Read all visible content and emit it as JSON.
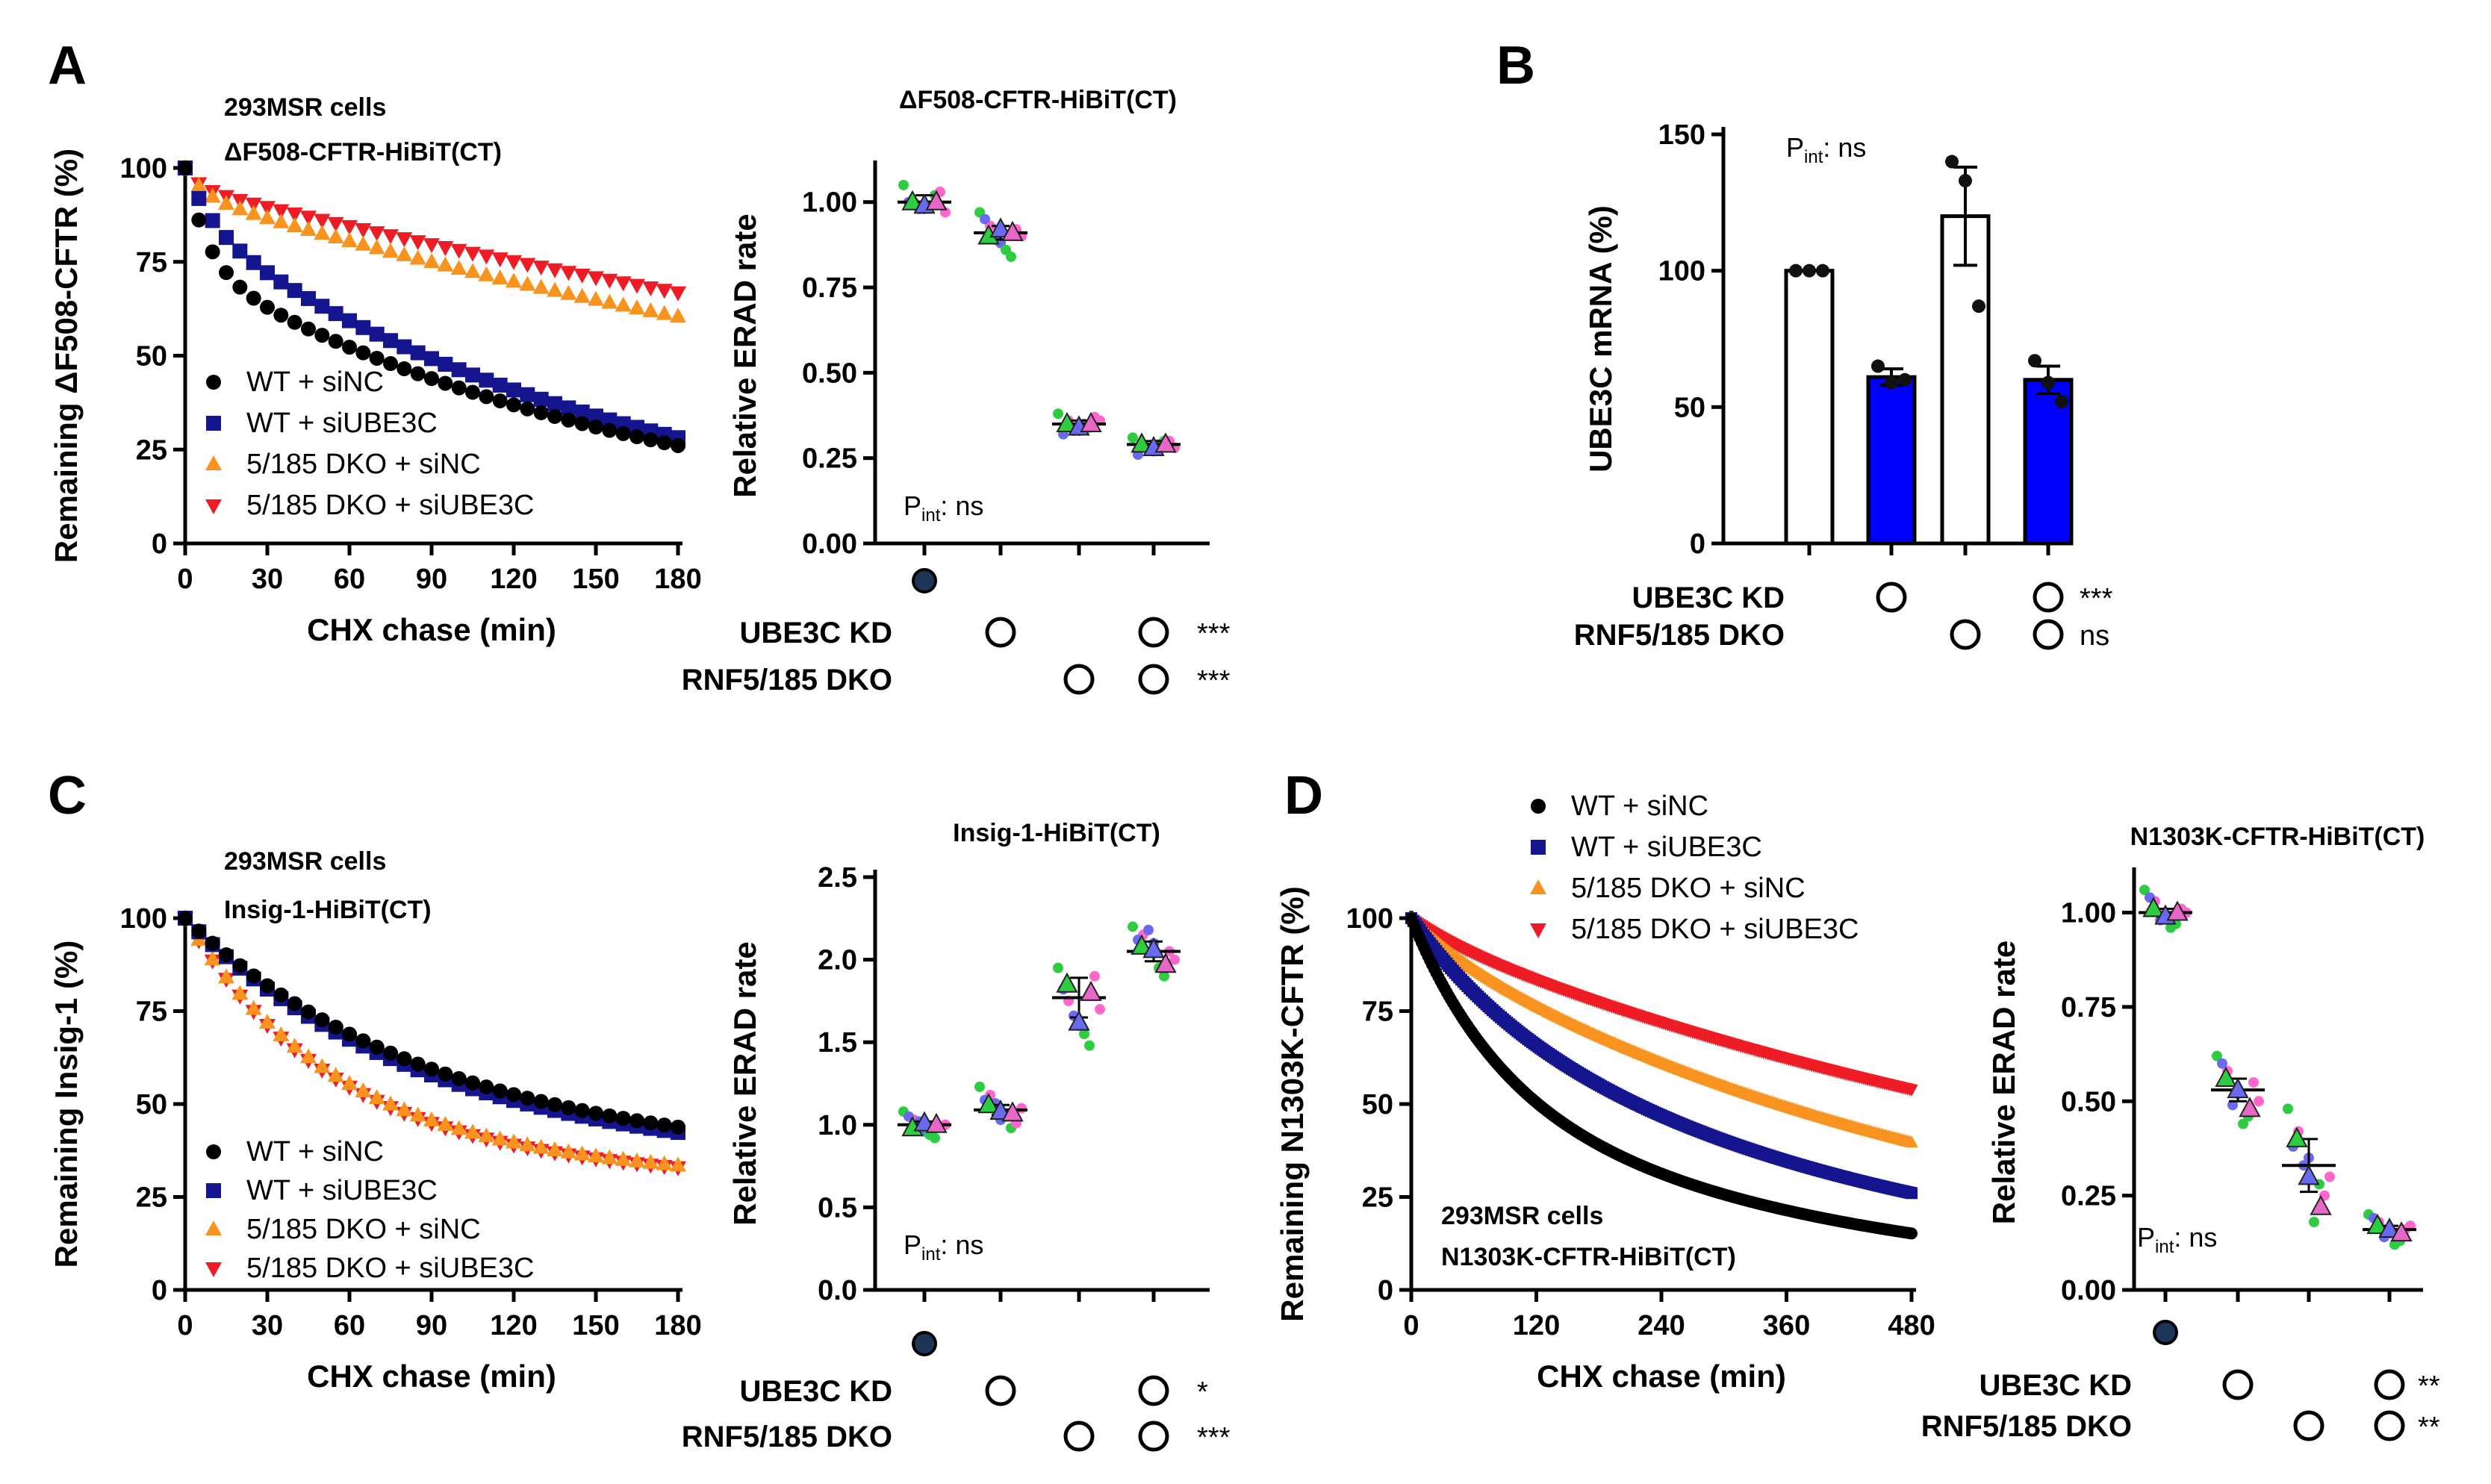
{
  "figure": {
    "panel_labels": [
      "A",
      "B",
      "C",
      "D"
    ],
    "pint_label_p": "P",
    "pint_label_sub": "int",
    "pint_value": ": ns"
  },
  "chart_data": [
    {
      "id": "A1",
      "type": "scatter",
      "title_lines": [
        "293MSR cells",
        "ΔF508-CFTR-HiBiT(CT)"
      ],
      "xlabel": "CHX chase (min)",
      "ylabel": "Remaining ΔF508-CFTR (%)",
      "xlim": [
        0,
        180
      ],
      "ylim": [
        0,
        100
      ],
      "xticks": [
        0,
        30,
        60,
        90,
        120,
        150,
        180
      ],
      "yticks": [
        0,
        25,
        50,
        75,
        100
      ],
      "x_step": 5,
      "legend": [
        "WT + siNC",
        "WT + siUBE3C",
        "5/185 DKO + siNC",
        "5/185 DKO + siUBE3C"
      ],
      "series": [
        {
          "name": "WT + siNC",
          "color": "#000000",
          "marker": "circle",
          "model": {
            "a": 0.26,
            "k1": 0.12,
            "b": 0.74,
            "k2": 0.0058
          }
        },
        {
          "name": "WT + siUBE3C",
          "color": "#15158f",
          "marker": "square",
          "model": {
            "a": 0.14,
            "k1": 0.1,
            "b": 0.86,
            "k2": 0.0062
          }
        },
        {
          "name": "5/185 DKO + siNC",
          "color": "#f7931e",
          "marker": "triangle-up",
          "model": {
            "a": 0.07,
            "k1": 0.15,
            "b": 0.93,
            "k2": 0.0024
          }
        },
        {
          "name": "5/185 DKO + siUBE3C",
          "color": "#ee1c24",
          "marker": "triangle-down",
          "model": {
            "a": 0.05,
            "k1": 0.2,
            "b": 0.95,
            "k2": 0.00195
          }
        }
      ]
    },
    {
      "id": "A2",
      "type": "scatter",
      "title": "ΔF508-CFTR-HiBiT(CT)",
      "ylabel": "Relative ERAD rate",
      "ylim": [
        0,
        1.1
      ],
      "yticks": [
        0.0,
        0.25,
        0.5,
        0.75,
        1.0
      ],
      "ytick_labels": [
        "0.00",
        "0.25",
        "0.50",
        "0.75",
        "1.00"
      ],
      "groups": [
        {
          "mean": 1.0,
          "sem": 0.02,
          "means": [
            1.0,
            0.99,
            1.0
          ],
          "points": [
            1.05,
            1.0,
            0.98,
            1.02,
            0.97,
            1.0,
            0.99,
            1.03,
            0.98
          ]
        },
        {
          "mean": 0.91,
          "sem": 0.02,
          "means": [
            0.9,
            0.92,
            0.91
          ],
          "points": [
            0.97,
            0.93,
            0.88,
            0.84,
            0.9,
            0.95,
            0.86,
            0.92,
            0.89
          ]
        },
        {
          "mean": 0.35,
          "sem": 0.01,
          "means": [
            0.35,
            0.34,
            0.35
          ],
          "points": [
            0.38,
            0.36,
            0.33,
            0.34,
            0.36,
            0.32,
            0.35,
            0.37,
            0.33
          ]
        },
        {
          "mean": 0.29,
          "sem": 0.01,
          "means": [
            0.29,
            0.28,
            0.29
          ],
          "points": [
            0.31,
            0.29,
            0.27,
            0.3,
            0.28,
            0.26,
            0.29,
            0.3,
            0.28
          ]
        }
      ],
      "matrix": {
        "rows": [
          {
            "label": "UBE3C KD",
            "marks": [
              false,
              true,
              false,
              true
            ],
            "sig": "***"
          },
          {
            "label": "RNF5/185 DKO",
            "marks": [
              false,
              false,
              true,
              true
            ],
            "sig": "***"
          }
        ],
        "control_mark": true
      }
    },
    {
      "id": "B",
      "type": "bar",
      "ylabel": "UBE3C mRNA (%)",
      "ylim": [
        0,
        150
      ],
      "yticks": [
        0,
        50,
        100,
        150
      ],
      "bars": [
        {
          "value": 100,
          "sem": 0,
          "points": [
            100,
            100,
            100
          ],
          "fill": "#ffffff"
        },
        {
          "value": 61,
          "sem": 3,
          "points": [
            65,
            59,
            60
          ],
          "fill": "#0000ff"
        },
        {
          "value": 120,
          "sem": 18,
          "points": [
            140,
            133,
            87
          ],
          "fill": "#ffffff"
        },
        {
          "value": 60,
          "sem": 5,
          "points": [
            67,
            59,
            52
          ],
          "fill": "#0000ff"
        }
      ],
      "matrix": {
        "rows": [
          {
            "label": "UBE3C KD",
            "marks": [
              false,
              true,
              false,
              true
            ],
            "sig": "***"
          },
          {
            "label": "RNF5/185 DKO",
            "marks": [
              false,
              false,
              true,
              true
            ],
            "sig": "ns"
          }
        ],
        "control_mark": false
      }
    },
    {
      "id": "C1",
      "type": "scatter",
      "title_lines": [
        "293MSR cells",
        "Insig-1-HiBiT(CT)"
      ],
      "xlabel": "CHX chase (min)",
      "ylabel": "Remaining Insig-1 (%)",
      "xlim": [
        0,
        180
      ],
      "ylim": [
        0,
        100
      ],
      "xticks": [
        0,
        30,
        60,
        90,
        120,
        150,
        180
      ],
      "yticks": [
        0,
        25,
        50,
        75,
        100
      ],
      "x_step": 5,
      "legend": [
        "WT + siNC",
        "WT + siUBE3C",
        "5/185 DKO + siNC",
        "5/185 DKO + siUBE3C"
      ],
      "series": [
        {
          "name": "WT + siNC",
          "color": "#000000",
          "marker": "circle",
          "model": {
            "a": 0.6,
            "k1": 0.0115,
            "b": 0.4,
            "k2": 0.00055
          }
        },
        {
          "name": "WT + siUBE3C",
          "color": "#15158f",
          "marker": "square",
          "model": {
            "a": 0.61,
            "k1": 0.012,
            "b": 0.39,
            "k2": 0.00055
          }
        },
        {
          "name": "5/185 DKO + siNC",
          "color": "#f7931e",
          "marker": "triangle-up",
          "model": {
            "a": 0.64,
            "k1": 0.0185,
            "b": 0.36,
            "k2": 0.0008
          }
        },
        {
          "name": "5/185 DKO + siUBE3C",
          "color": "#ee1c24",
          "marker": "triangle-down",
          "model": {
            "a": 0.64,
            "k1": 0.019,
            "b": 0.36,
            "k2": 0.00085
          }
        }
      ]
    },
    {
      "id": "C2",
      "type": "scatter",
      "title": "Insig-1-HiBiT(CT)",
      "ylabel": "Relative ERAD rate",
      "ylim": [
        0,
        2.5
      ],
      "yticks": [
        0.0,
        0.5,
        1.0,
        1.5,
        2.0,
        2.5
      ],
      "ytick_labels": [
        "0.0",
        "0.5",
        "1.0",
        "1.5",
        "2.0",
        "2.5"
      ],
      "groups": [
        {
          "mean": 1.0,
          "sem": 0.02,
          "means": [
            0.98,
            1.01,
            1.0
          ],
          "points": [
            1.08,
            1.03,
            0.96,
            0.92,
            1.0,
            1.05,
            0.94,
            0.99,
            1.02
          ]
        },
        {
          "mean": 1.09,
          "sem": 0.03,
          "means": [
            1.12,
            1.08,
            1.07
          ],
          "points": [
            1.23,
            1.18,
            1.03,
            0.98,
            1.1,
            1.15,
            1.05,
            1.01,
            1.13
          ]
        },
        {
          "mean": 1.77,
          "sem": 0.12,
          "means": [
            1.85,
            1.62,
            1.8
          ],
          "points": [
            1.95,
            1.75,
            1.6,
            1.48,
            1.7,
            1.82,
            1.55,
            1.9,
            1.66
          ]
        },
        {
          "mean": 2.05,
          "sem": 0.06,
          "means": [
            2.08,
            2.06,
            1.97
          ],
          "points": [
            2.2,
            2.15,
            2.1,
            1.9,
            2.0,
            2.12,
            1.95,
            2.05,
            2.18
          ]
        }
      ],
      "matrix": {
        "rows": [
          {
            "label": "UBE3C KD",
            "marks": [
              false,
              true,
              false,
              true
            ],
            "sig": "*"
          },
          {
            "label": "RNF5/185 DKO",
            "marks": [
              false,
              false,
              true,
              true
            ],
            "sig": "***"
          }
        ],
        "control_mark": true
      }
    },
    {
      "id": "D1",
      "type": "scatter",
      "title_lines": [
        "293MSR cells",
        "N1303K-CFTR-HiBiT(CT)"
      ],
      "xlabel": "CHX chase (min)",
      "ylabel": "Remaining N1303K-CFTR (%)",
      "xlim": [
        0,
        480
      ],
      "ylim": [
        0,
        100
      ],
      "xticks": [
        0,
        120,
        240,
        360,
        480
      ],
      "yticks": [
        0,
        25,
        50,
        75,
        100
      ],
      "x_step": 2,
      "legend": [
        "WT + siNC",
        "WT + siUBE3C",
        "5/185 DKO + siNC",
        "5/185 DKO + siUBE3C"
      ],
      "series": [
        {
          "name": "WT + siNC",
          "color": "#000000",
          "marker": "circle",
          "model": {
            "a": 0.45,
            "k1": 0.012,
            "b": 0.55,
            "k2": 0.0027
          }
        },
        {
          "name": "WT + siUBE3C",
          "color": "#15158f",
          "marker": "square",
          "model": {
            "a": 0.22,
            "k1": 0.01,
            "b": 0.78,
            "k2": 0.0023
          }
        },
        {
          "name": "5/185 DKO + siNC",
          "color": "#f7931e",
          "marker": "triangle-up",
          "model": {
            "a": 0.06,
            "k1": 0.02,
            "b": 0.94,
            "k2": 0.0018
          }
        },
        {
          "name": "5/185 DKO + siUBE3C",
          "color": "#ee1c24",
          "marker": "triangle-down",
          "model": {
            "a": 0.04,
            "k1": 0.02,
            "b": 0.96,
            "k2": 0.0012
          }
        }
      ]
    },
    {
      "id": "D2",
      "type": "scatter",
      "title": "N1303K-CFTR-HiBiT(CT)",
      "ylabel": "Relative ERAD rate",
      "ylim": [
        0,
        1.1
      ],
      "yticks": [
        0.0,
        0.25,
        0.5,
        0.75,
        1.0
      ],
      "ytick_labels": [
        "0.00",
        "0.25",
        "0.50",
        "0.75",
        "1.00"
      ],
      "groups": [
        {
          "mean": 1.0,
          "sem": 0.01,
          "means": [
            1.01,
            0.99,
            1.0
          ],
          "points": [
            1.06,
            1.03,
            0.99,
            0.97,
            1.0,
            1.04,
            0.96,
            1.01,
            0.98
          ]
        },
        {
          "mean": 0.53,
          "sem": 0.03,
          "means": [
            0.56,
            0.53,
            0.48
          ],
          "points": [
            0.62,
            0.58,
            0.52,
            0.46,
            0.5,
            0.6,
            0.44,
            0.55,
            0.49
          ]
        },
        {
          "mean": 0.33,
          "sem": 0.07,
          "means": [
            0.4,
            0.3,
            0.22
          ],
          "points": [
            0.48,
            0.42,
            0.35,
            0.28,
            0.3,
            0.38,
            0.18,
            0.25,
            0.33
          ]
        },
        {
          "mean": 0.16,
          "sem": 0.01,
          "means": [
            0.17,
            0.16,
            0.15
          ],
          "points": [
            0.2,
            0.18,
            0.15,
            0.13,
            0.17,
            0.19,
            0.12,
            0.16,
            0.14
          ]
        }
      ],
      "matrix": {
        "rows": [
          {
            "label": "UBE3C KD",
            "marks": [
              false,
              true,
              false,
              true
            ],
            "sig": "**"
          },
          {
            "label": "RNF5/185 DKO",
            "marks": [
              false,
              false,
              true,
              true
            ],
            "sig": "**"
          }
        ],
        "control_mark": true
      }
    }
  ]
}
